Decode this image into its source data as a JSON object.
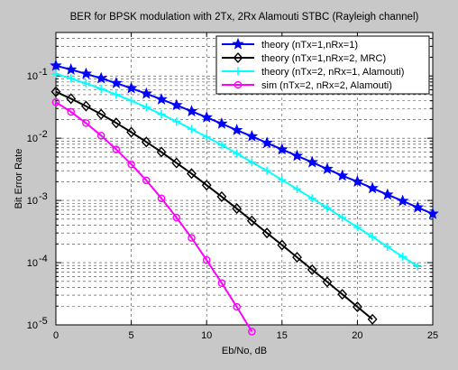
{
  "chart_data": {
    "type": "line",
    "title": "BER for BPSK modulation with 2Tx, 2Rx Alamouti STBC (Rayleigh channel)",
    "xlabel": "Eb/No, dB",
    "ylabel": "Bit Error Rate",
    "xlim": [
      0,
      25
    ],
    "ylim": [
      1e-05,
      0.5
    ],
    "yscale": "log",
    "grid": true,
    "legend_position": "top-right",
    "x_ticks": [
      "0",
      "5",
      "10",
      "15",
      "20",
      "25"
    ],
    "y_ticks": [
      {
        "value": 0.1,
        "label": "10",
        "exp": "-1"
      },
      {
        "value": 0.01,
        "label": "10",
        "exp": "-2"
      },
      {
        "value": 0.001,
        "label": "10",
        "exp": "-3"
      },
      {
        "value": 0.0001,
        "label": "10",
        "exp": "-4"
      },
      {
        "value": 1e-05,
        "label": "10",
        "exp": "-5"
      }
    ],
    "series": [
      {
        "name": "theory (nTx=1,nRx=1)",
        "color": "#0000ff",
        "marker": "star",
        "x": [
          0,
          1,
          2,
          3,
          4,
          5,
          6,
          7,
          8,
          9,
          10,
          11,
          12,
          13,
          14,
          15,
          16,
          17,
          18,
          19,
          20,
          21,
          22,
          23,
          24,
          25
        ],
        "y": [
          0.1464,
          0.1267,
          0.1085,
          0.0918,
          0.0767,
          0.0635,
          0.0519,
          0.0421,
          0.0339,
          0.0271,
          0.0216,
          0.0171,
          0.0135,
          0.0107,
          0.0084,
          0.0066,
          0.0052,
          0.0041,
          0.0032,
          0.0025,
          0.002,
          0.00157,
          0.00124,
          0.00098,
          0.00077,
          0.00061
        ]
      },
      {
        "name": "theory (nTx=1,nRx=2, MRC)",
        "color": "#000000",
        "marker": "diamond",
        "x": [
          0,
          1,
          2,
          3,
          4,
          5,
          6,
          7,
          8,
          9,
          10,
          11,
          12,
          13,
          14,
          15,
          16,
          17,
          18,
          19,
          20,
          21
        ],
        "y": [
          0.0558,
          0.0432,
          0.0328,
          0.0243,
          0.0176,
          0.0125,
          0.0087,
          0.006,
          0.004,
          0.0027,
          0.00176,
          0.00115,
          0.00074,
          0.00047,
          0.0003,
          0.000192,
          0.000122,
          7.7e-05,
          4.9e-05,
          3.1e-05,
          1.95e-05,
          1.23e-05
        ]
      },
      {
        "name": "theory (nTx=2, nRx=1, Alamouti)",
        "color": "#00ffff",
        "marker": "plus",
        "x": [
          0,
          1,
          2,
          3,
          4,
          5,
          6,
          7,
          8,
          9,
          10,
          11,
          12,
          13,
          14,
          15,
          16,
          17,
          18,
          19,
          20,
          21,
          22,
          23,
          24
        ],
        "y": [
          0.108,
          0.0912,
          0.076,
          0.0623,
          0.0503,
          0.04,
          0.0314,
          0.0243,
          0.0186,
          0.014,
          0.0105,
          0.0078,
          0.0057,
          0.0041,
          0.003,
          0.00214,
          0.00152,
          0.00108,
          0.00076,
          0.00053,
          0.00037,
          0.00026,
          0.00018,
          0.000125,
          8.7e-05
        ]
      },
      {
        "name": "sim (nTx=2, nRx=2, Alamouti)",
        "color": "#ff00ff",
        "marker": "circle",
        "x": [
          0,
          1,
          2,
          3,
          4,
          5,
          6,
          7,
          8,
          9,
          10,
          11,
          12,
          13
        ],
        "y": [
          0.038,
          0.0265,
          0.0175,
          0.011,
          0.0066,
          0.0038,
          0.0021,
          0.00108,
          0.00053,
          0.00025,
          0.00011,
          4.7e-05,
          1.95e-05,
          7.8e-06
        ]
      }
    ]
  }
}
